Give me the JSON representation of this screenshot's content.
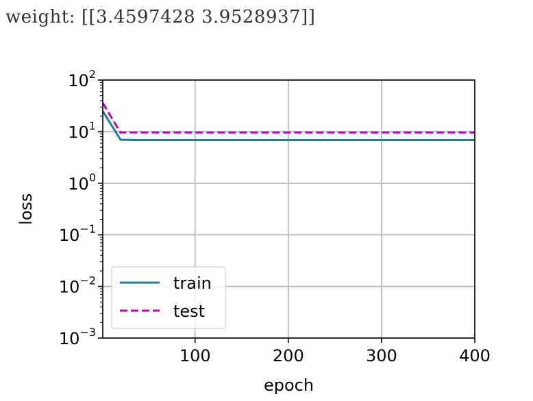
{
  "output": {
    "weight_label": "weight:",
    "weight_value": "[[3.4597428 3.9528937]]"
  },
  "chart_data": {
    "type": "line",
    "xlabel": "epoch",
    "ylabel": "loss",
    "xlim": [
      1,
      400
    ],
    "ylim": [
      0.001,
      100
    ],
    "yscale": "log",
    "grid": true,
    "legend_position": "lower-left",
    "x_ticks": [
      100,
      200,
      300,
      400
    ],
    "x_tick_labels": [
      "100",
      "200",
      "300",
      "400"
    ],
    "y_ticks": [
      0.001,
      0.01,
      0.1,
      1,
      10,
      100
    ],
    "y_tick_labels": [
      {
        "base": "10",
        "exp": "−3"
      },
      {
        "base": "10",
        "exp": "−2"
      },
      {
        "base": "10",
        "exp": "−1"
      },
      {
        "base": "10",
        "exp": "0"
      },
      {
        "base": "10",
        "exp": "1"
      },
      {
        "base": "10",
        "exp": "2"
      }
    ],
    "series": [
      {
        "name": "train",
        "color": "#1f77b4",
        "dash": "solid",
        "x": [
          1,
          20,
          40,
          100,
          200,
          300,
          400
        ],
        "y": [
          25.0,
          7.0,
          6.9,
          6.9,
          6.9,
          6.9,
          6.9
        ]
      },
      {
        "name": "test",
        "color": "#bf00bf",
        "dash": "dashed",
        "x": [
          1,
          20,
          40,
          100,
          200,
          300,
          400
        ],
        "y": [
          36.0,
          9.6,
          9.6,
          9.6,
          9.6,
          9.6,
          9.6
        ]
      }
    ]
  }
}
